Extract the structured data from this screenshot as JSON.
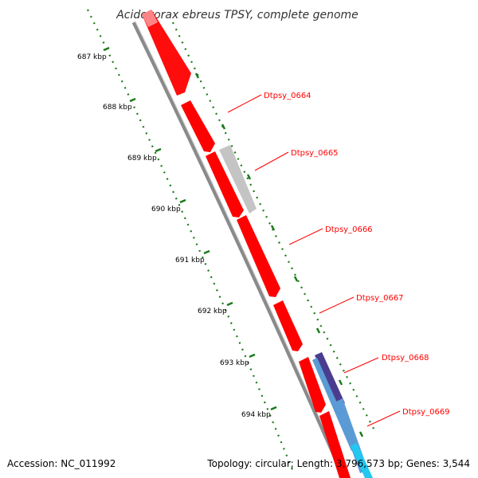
{
  "title": "Acidovorax ebreus TPSY, complete genome",
  "footer": {
    "accession": "Accession: NC_011992",
    "summary": "Topology: circular; Length: 3,796,573 bp; Genes: 3,544"
  },
  "ticks": [
    "687 kbp",
    "688 kbp",
    "689 kbp",
    "690 kbp",
    "691 kbp",
    "692 kbp",
    "693 kbp",
    "694 kbp"
  ],
  "genes": [
    "Dtpsy_0664",
    "Dtpsy_0665",
    "Dtpsy_0666",
    "Dtpsy_0667",
    "Dtpsy_0668",
    "Dtpsy_0669"
  ],
  "colors": {
    "cds_forward": "#ff0000",
    "cds_gray": "#c0c0c0",
    "cds_purple": "#4a3d8f",
    "cds_blue": "#5b9bd5",
    "cds_cyan": "#22c8f0",
    "backbone": "#808080",
    "tick_green": "#1a7a1a",
    "label_red": "#ff0000"
  }
}
